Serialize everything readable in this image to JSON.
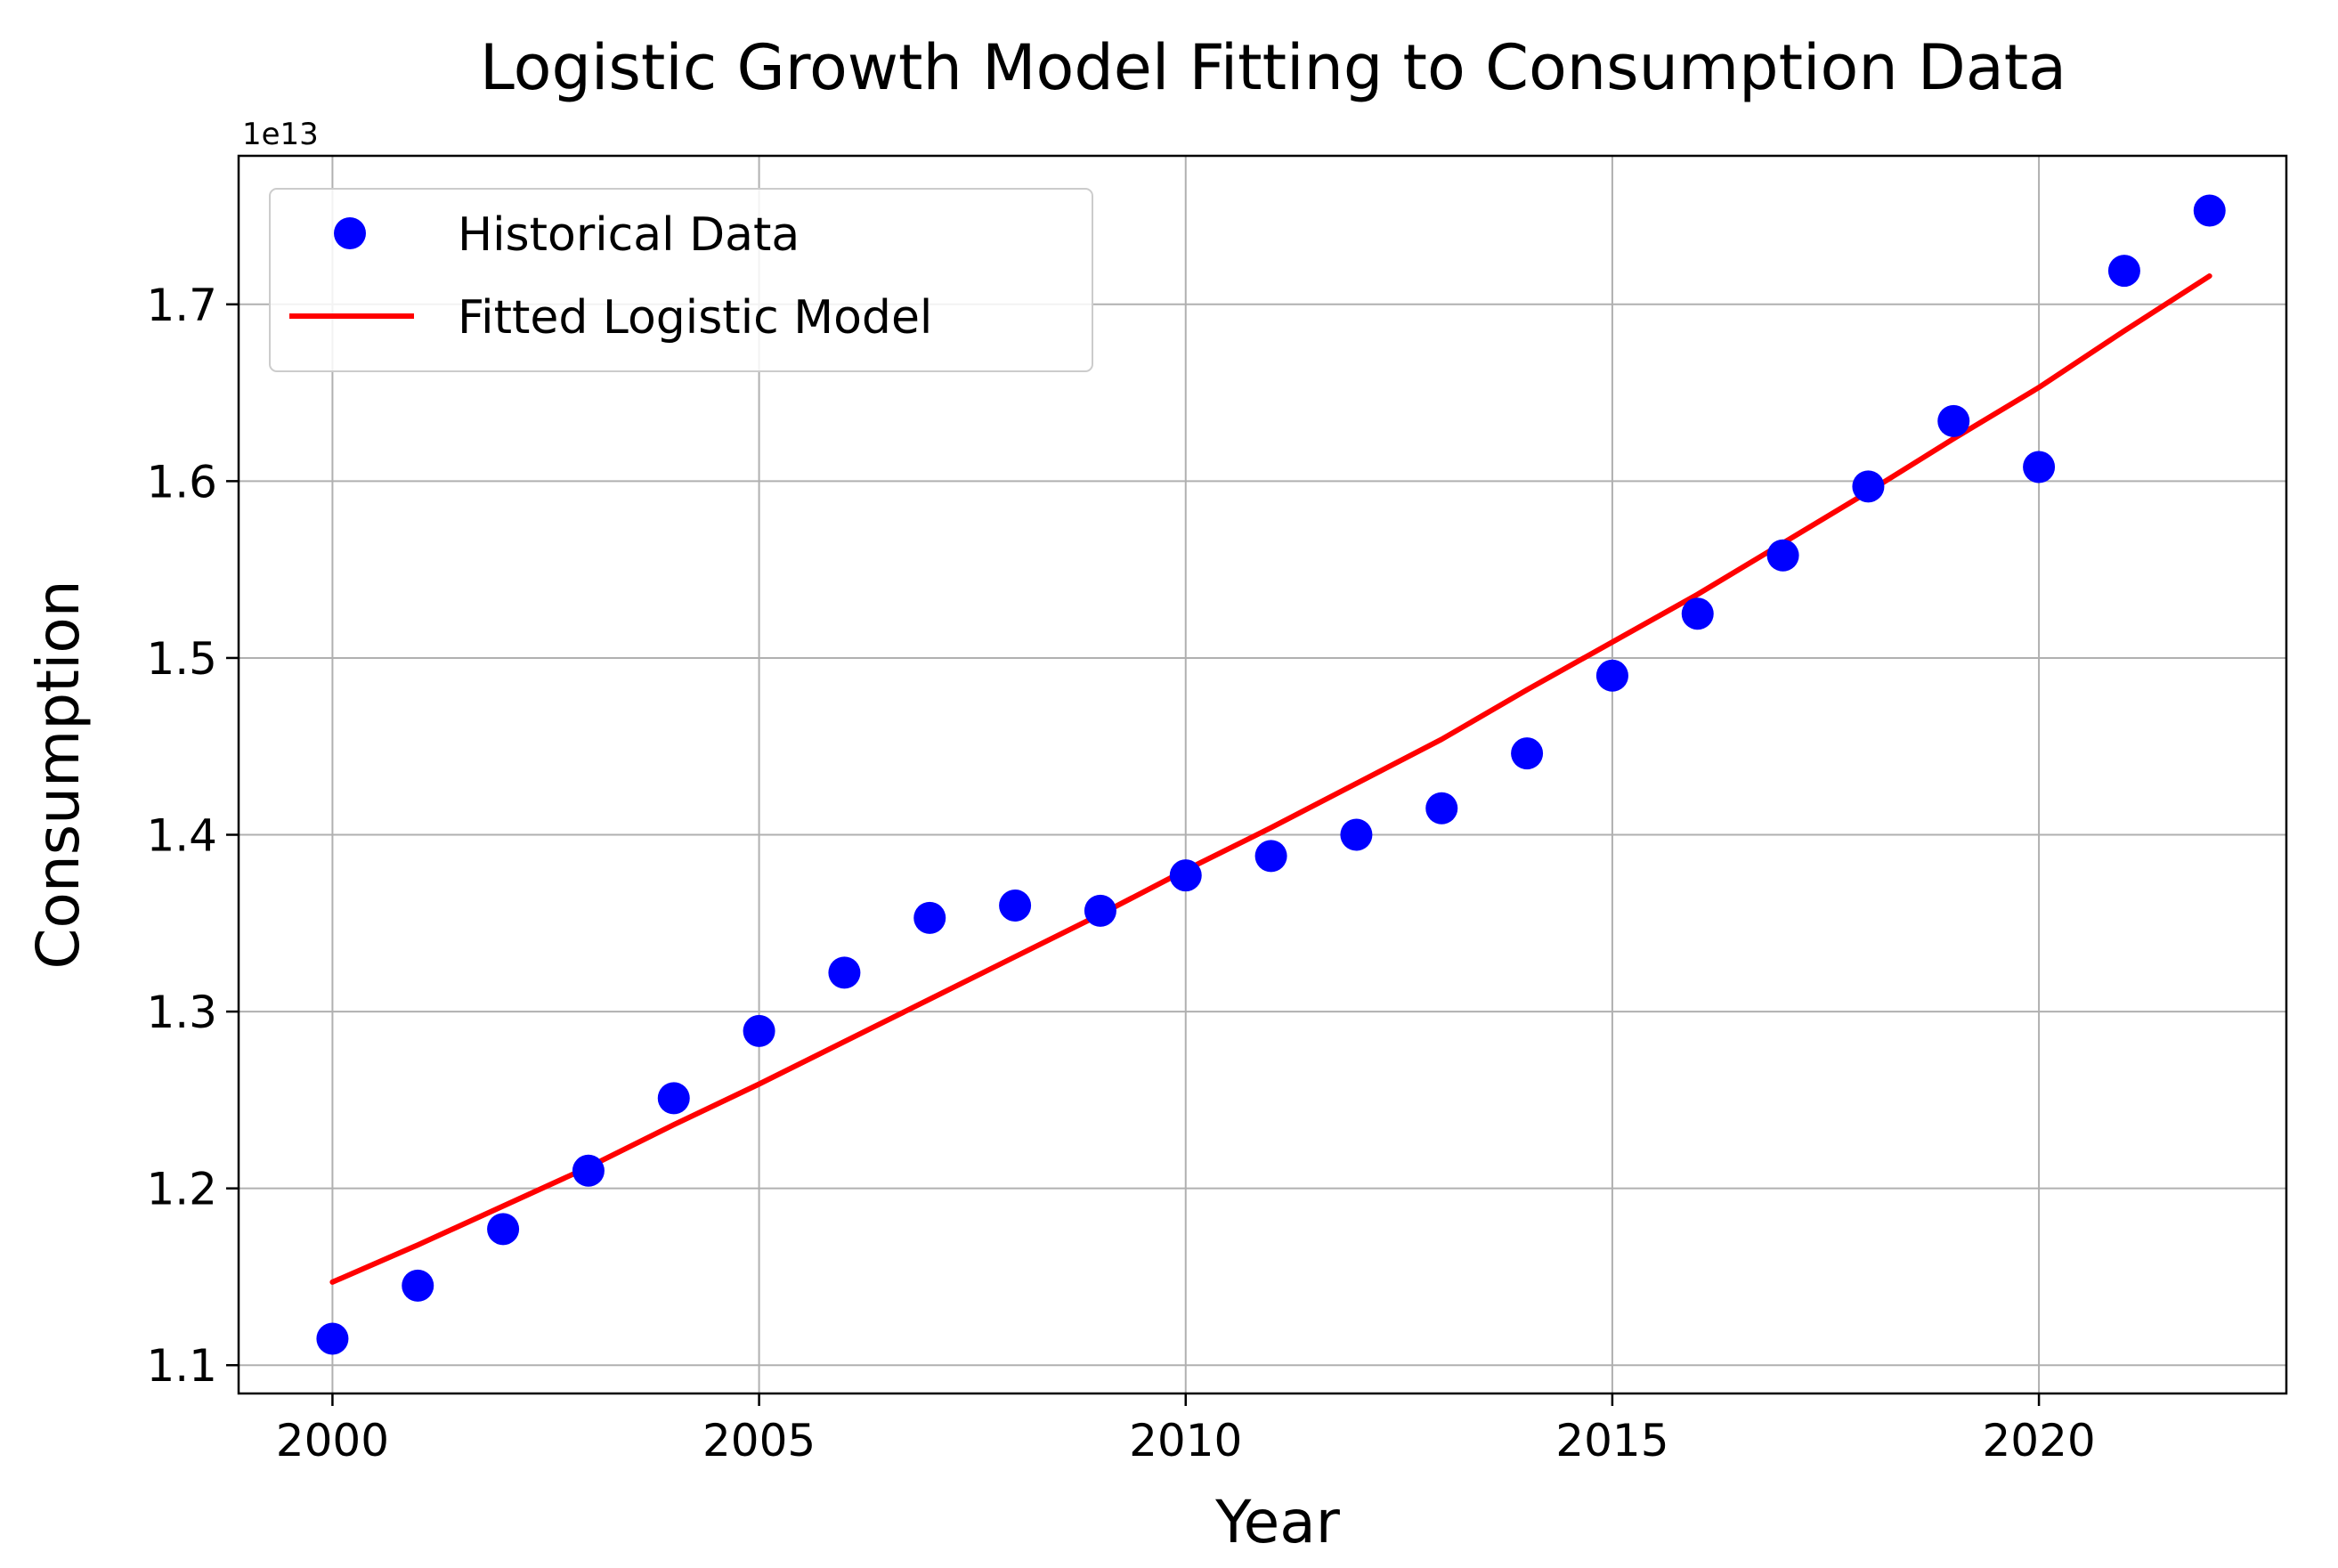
{
  "chart_data": {
    "type": "scatter",
    "title": "Logistic Growth Model Fitting to Consumption Data",
    "xlabel": "Year",
    "ylabel": "Consumption",
    "y_offset_label": "1e13",
    "xlim": [
      1998.9,
      2022.9
    ],
    "ylim": [
      1.084,
      1.784
    ],
    "x_ticks": [
      2000,
      2005,
      2010,
      2015,
      2020
    ],
    "x_tick_labels": [
      "2000",
      "2005",
      "2010",
      "2015",
      "2020"
    ],
    "y_ticks": [
      1.1,
      1.2,
      1.3,
      1.4,
      1.5,
      1.6,
      1.7
    ],
    "y_tick_labels": [
      "1.1",
      "1.2",
      "1.3",
      "1.4",
      "1.5",
      "1.6",
      "1.7"
    ],
    "grid": true,
    "legend_position": "upper-left",
    "series": [
      {
        "name": "Historical Data",
        "kind": "points",
        "color": "#0000ff",
        "x": [
          2000,
          2001,
          2002,
          2003,
          2004,
          2005,
          2006,
          2007,
          2008,
          2009,
          2010,
          2011,
          2012,
          2013,
          2014,
          2015,
          2016,
          2017,
          2018,
          2019,
          2020,
          2021,
          2022
        ],
        "values": [
          1.115,
          1.145,
          1.177,
          1.21,
          1.251,
          1.289,
          1.322,
          1.353,
          1.36,
          1.357,
          1.377,
          1.388,
          1.4,
          1.415,
          1.446,
          1.49,
          1.525,
          1.558,
          1.597,
          1.634,
          1.608,
          1.719,
          1.753
        ]
      },
      {
        "name": "Fitted Logistic Model",
        "kind": "line",
        "color": "#ff0000",
        "x": [
          2000,
          2001,
          2002,
          2003,
          2004,
          2005,
          2006,
          2007,
          2008,
          2009,
          2010,
          2011,
          2012,
          2013,
          2014,
          2015,
          2016,
          2017,
          2018,
          2019,
          2020,
          2021,
          2022
        ],
        "values": [
          1.147,
          1.168,
          1.19,
          1.212,
          1.236,
          1.259,
          1.283,
          1.307,
          1.331,
          1.355,
          1.38,
          1.404,
          1.429,
          1.454,
          1.482,
          1.509,
          1.536,
          1.565,
          1.594,
          1.624,
          1.653,
          1.685,
          1.716
        ]
      }
    ]
  }
}
